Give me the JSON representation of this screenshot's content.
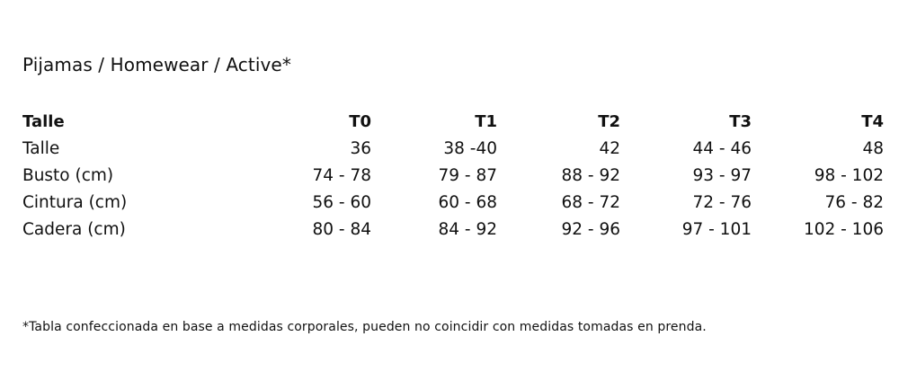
{
  "title": "Pijamas / Homewear / Active*",
  "table": {
    "header": [
      "Talle",
      "T0",
      "T1",
      "T2",
      "T3",
      "T4"
    ],
    "rows": [
      [
        "Talle",
        "36",
        "38 -40",
        "42",
        "44 - 46",
        "48"
      ],
      [
        "Busto (cm)",
        "74 - 78",
        "79 - 87",
        "88 - 92",
        "93 - 97",
        "98 - 102"
      ],
      [
        "Cintura (cm)",
        "56 - 60",
        "60 - 68",
        "68 - 72",
        "72 - 76",
        "76 - 82"
      ],
      [
        "Cadera (cm)",
        "80 - 84",
        "84 - 92",
        "92 - 96",
        "97 - 101",
        "102 - 106"
      ]
    ]
  },
  "footnote": "*Tabla confeccionada en base a medidas corporales, pueden no coincidir con medidas tomadas en prenda."
}
